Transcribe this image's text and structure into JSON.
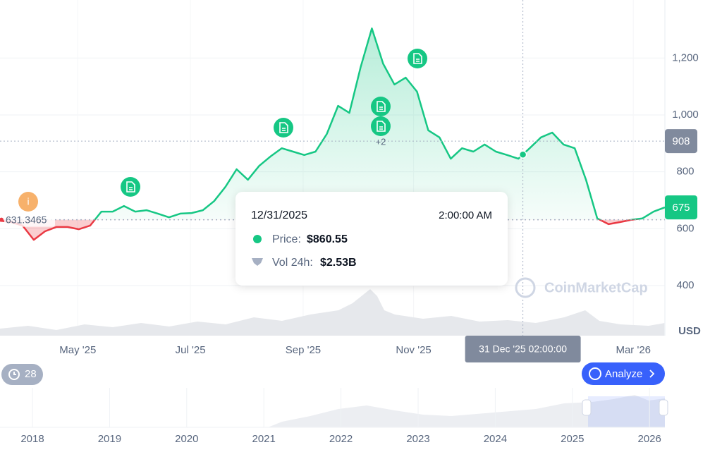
{
  "chart_data": {
    "type": "line",
    "values": [
      628,
      623,
      611,
      561,
      591,
      606,
      606,
      598,
      611,
      660,
      660,
      680,
      660,
      665,
      653,
      640,
      653,
      655,
      665,
      697,
      747,
      809,
      772,
      821,
      854,
      883,
      871,
      859,
      871,
      933,
      1032,
      1007,
      1168,
      1304,
      1180,
      1107,
      1131,
      1082,
      946,
      921,
      846,
      883,
      871,
      896,
      871,
      859,
      846,
      883,
      921,
      938,
      896,
      883,
      772,
      636,
      616,
      623,
      631,
      636,
      660,
      675
    ],
    "color_up": "#16c784",
    "color_down": "#ea3943",
    "baseline": 631.3465,
    "ylim": [
      224,
      1404
    ],
    "yticks": [
      400,
      600,
      800,
      {
        "value": 1000,
        "label": "1,000"
      },
      {
        "value": 1200,
        "label": "1,200"
      }
    ],
    "y_unit": "USD",
    "xlim": [
      0,
      59
    ],
    "xticks": [
      {
        "value": 6.9,
        "label": "May '25"
      },
      {
        "value": 16.9,
        "label": "Jul '25"
      },
      {
        "value": 26.9,
        "label": "Sep '25"
      },
      {
        "value": 36.7,
        "label": "Nov '25"
      },
      {
        "value": 56.2,
        "label": "Mar '26"
      }
    ],
    "current_price": 675,
    "crosshair": {
      "x": 46.4,
      "price": 860.55,
      "y_value": 908,
      "label": "31 Dec '25 02:00:00"
    },
    "grid": true
  },
  "tooltip": {
    "date": "12/31/2025",
    "time": "2:00:00 AM",
    "price_label": "Price:",
    "price": "$860.55",
    "volume_label": "Vol 24h:",
    "volume": "$2.53B"
  },
  "news": {
    "more": "+2"
  },
  "info_icon": "i",
  "history_count": 28,
  "analyze_button": "Analyze",
  "watermark": "CoinMarketCap",
  "navigator": {
    "years": [
      "2018",
      "2019",
      "2020",
      "2021",
      "2022",
      "2023",
      "2024",
      "2025",
      "2026"
    ]
  }
}
